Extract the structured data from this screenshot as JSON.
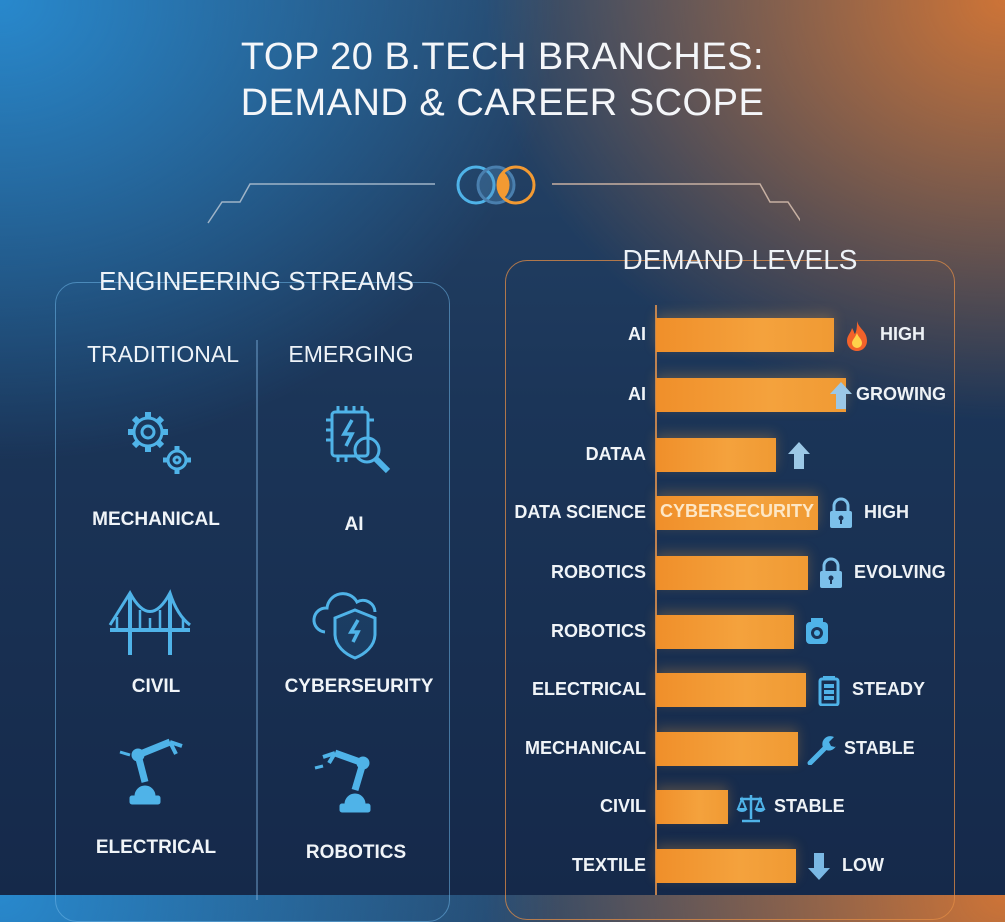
{
  "header": {
    "title_line1": "TOP 20 B.TECH BRANCHES:",
    "title_line2": "DEMAND & CAREER SCOPE"
  },
  "colors": {
    "accent_blue": "#4fb3e8",
    "accent_orange": "#f39a32",
    "bar": "#f39a32"
  },
  "streams": {
    "title": "ENGINEERING STREAMS",
    "traditional": {
      "heading": "TRADITIONAL",
      "items": [
        {
          "label": "MECHANICAL",
          "icon": "gears-icon"
        },
        {
          "label": "CIVIL",
          "icon": "bridge-icon"
        },
        {
          "label": "ELECTRICAL",
          "icon": "robot-arm-icon"
        }
      ]
    },
    "emerging": {
      "heading": "EMERGING",
      "items": [
        {
          "label": "AI",
          "icon": "chip-search-icon"
        },
        {
          "label": "CYBERSEURITY",
          "icon": "cloud-shield-icon"
        },
        {
          "label": "ROBOTICS",
          "icon": "robot-arm-icon"
        }
      ]
    }
  },
  "chart_data": {
    "type": "bar",
    "orientation": "horizontal",
    "title": "DEMAND LEVELS",
    "value_scale": "relative (no axis printed)",
    "categories": [
      "AI",
      "AI",
      "DATAA",
      "DATA SCIENCE",
      "ROBOTICS",
      "ROBOTICS",
      "ELECTRICAL",
      "MECHANICAL",
      "CIVIL",
      "TEXTILE"
    ],
    "values": [
      89,
      95,
      60,
      81,
      76,
      69,
      75,
      71,
      36,
      70
    ],
    "bar_inner_labels": [
      "",
      "",
      "",
      "CYBERSECURITY",
      "",
      "",
      "",
      "",
      "",
      ""
    ],
    "status_labels": [
      "HIGH",
      "GROWING",
      "",
      "HIGH",
      "EVOLVING",
      "",
      "STEADY",
      "STABLE",
      "STABLE",
      "LOW"
    ],
    "status_icons": [
      "fire-icon",
      "arrow-up-icon",
      "arrow-up-icon",
      "lock-icon",
      "lock-icon",
      "gear-icon",
      "battery-icon",
      "wrench-icon",
      "scales-icon",
      "arrow-down-icon"
    ]
  }
}
